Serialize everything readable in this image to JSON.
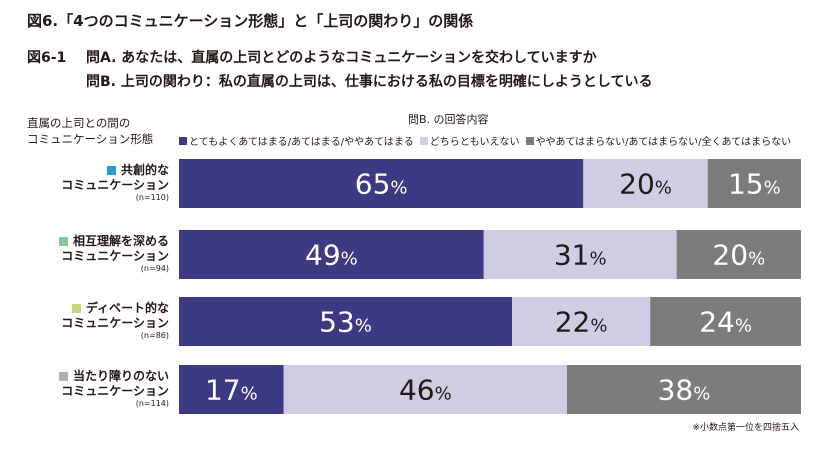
{
  "title": "図6.「4つのコミュニケーション形態」と「上司の関わり」の関係",
  "subfigure_label": "図6-1",
  "question_a": "問A. あなたは、直属の上司とどのようなコミュニケーションを交わしていますか",
  "question_b": "問B. 上司の関わり：私の直属の上司は、仕事における私の目標を明確にしようとしている",
  "row_header": [
    "直属の上司との間の",
    "コミュニケーション形態"
  ],
  "legend_title": "問B. の回答内容",
  "note": "※小数点第一位を四捨五入",
  "chart_data": {
    "type": "bar",
    "orientation": "horizontal",
    "stacked": "100%",
    "unit": "%",
    "categories": [
      {
        "name": "共創的な",
        "name2": "コミュニケーション",
        "n": "(n=110)",
        "color": "#2a9ad6"
      },
      {
        "name": "相互理解を深める",
        "name2": "コミュニケーション",
        "n": "(n=94)",
        "color": "#82c99f"
      },
      {
        "name": "ディベート的な",
        "name2": "コミュニケーション",
        "n": "(n=86)",
        "color": "#c3d77a"
      },
      {
        "name": "当たり障りのない",
        "name2": "コミュニケーション",
        "n": "(n=114)",
        "color": "#b0b0b0"
      }
    ],
    "series": [
      {
        "name": "とてもよくあてはまる/あてはまる/ややあてはまる",
        "color": "#3d3a84",
        "label_color": "#ffffff",
        "values": [
          65,
          49,
          53,
          17
        ]
      },
      {
        "name": "どちらともいえない",
        "color": "#cfcde3",
        "label_color": "#231815",
        "values": [
          20,
          31,
          22,
          46
        ]
      },
      {
        "name": "ややあてはまらない/あてはまらない/全くあてはまらない",
        "color": "#7c7c7c",
        "label_color": "#ffffff",
        "values": [
          15,
          20,
          24,
          38
        ]
      }
    ]
  }
}
